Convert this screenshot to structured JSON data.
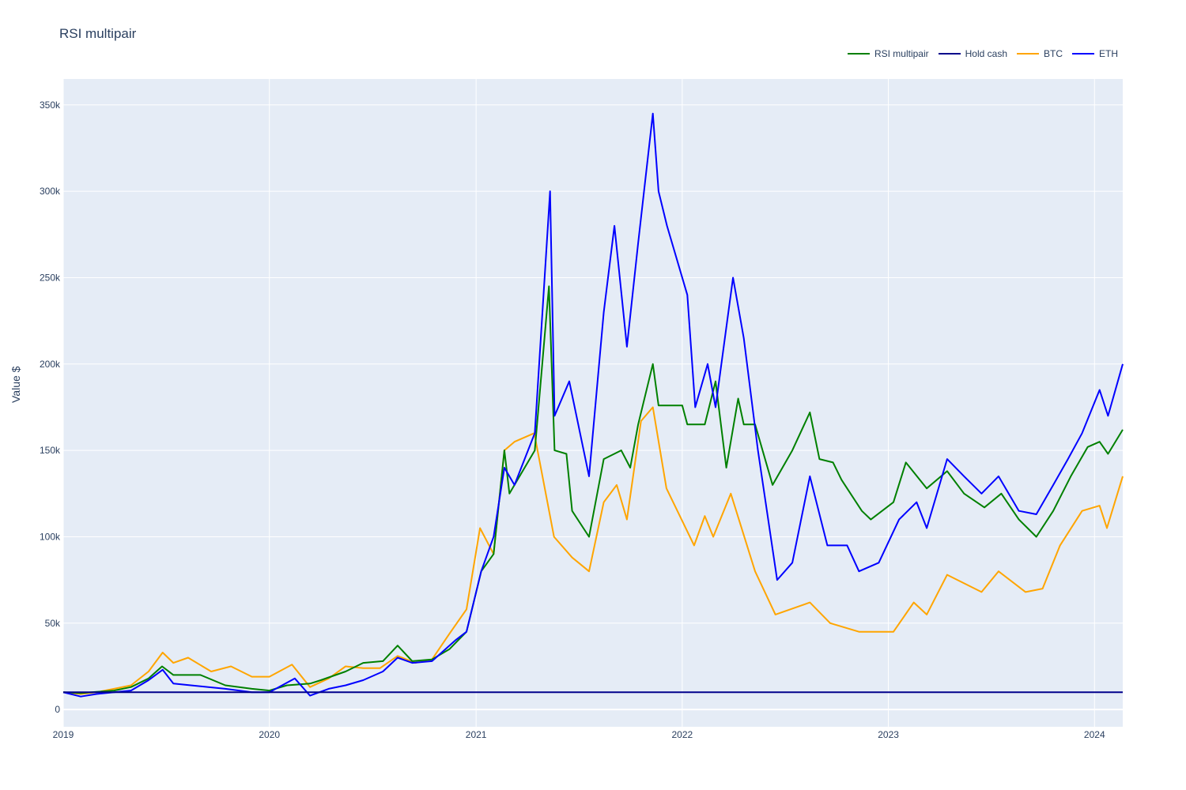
{
  "chart_data": {
    "type": "line",
    "title": "RSI multipair",
    "xlabel": "",
    "ylabel": "Value $",
    "xlim": [
      "2019-01-01",
      "2024-02-20"
    ],
    "ylim": [
      -10000,
      365000
    ],
    "grid": true,
    "legend_position": "top-right",
    "x_ticks": [
      "2019",
      "2020",
      "2021",
      "2022",
      "2023",
      "2024"
    ],
    "y_ticks": [
      {
        "value": 0,
        "label": "0"
      },
      {
        "value": 50000,
        "label": "50k"
      },
      {
        "value": 100000,
        "label": "100k"
      },
      {
        "value": 150000,
        "label": "150k"
      },
      {
        "value": 200000,
        "label": "200k"
      },
      {
        "value": 250000,
        "label": "250k"
      },
      {
        "value": 300000,
        "label": "300k"
      },
      {
        "value": 350000,
        "label": "350k"
      }
    ],
    "series": [
      {
        "name": "RSI multipair",
        "color": "#008000",
        "points": [
          [
            "2019-01-01",
            10000
          ],
          [
            "2019-02-01",
            9500
          ],
          [
            "2019-03-01",
            10200
          ],
          [
            "2019-04-01",
            11000
          ],
          [
            "2019-05-01",
            13000
          ],
          [
            "2019-06-01",
            18000
          ],
          [
            "2019-06-25",
            25000
          ],
          [
            "2019-07-15",
            20000
          ],
          [
            "2019-09-01",
            20000
          ],
          [
            "2019-10-15",
            14000
          ],
          [
            "2019-12-01",
            12000
          ],
          [
            "2020-01-01",
            11000
          ],
          [
            "2020-02-01",
            14000
          ],
          [
            "2020-03-13",
            15000
          ],
          [
            "2020-04-01",
            17000
          ],
          [
            "2020-05-15",
            22000
          ],
          [
            "2020-06-15",
            27000
          ],
          [
            "2020-07-20",
            28000
          ],
          [
            "2020-08-15",
            37000
          ],
          [
            "2020-09-10",
            28000
          ],
          [
            "2020-10-15",
            29000
          ],
          [
            "2020-11-15",
            35000
          ],
          [
            "2020-12-15",
            45000
          ],
          [
            "2021-01-10",
            80000
          ],
          [
            "2021-02-01",
            90000
          ],
          [
            "2021-02-20",
            150000
          ],
          [
            "2021-03-01",
            125000
          ],
          [
            "2021-04-15",
            150000
          ],
          [
            "2021-05-10",
            245000
          ],
          [
            "2021-05-20",
            150000
          ],
          [
            "2021-06-10",
            148000
          ],
          [
            "2021-06-20",
            115000
          ],
          [
            "2021-07-20",
            100000
          ],
          [
            "2021-08-15",
            145000
          ],
          [
            "2021-09-15",
            150000
          ],
          [
            "2021-10-01",
            140000
          ],
          [
            "2021-10-15",
            165000
          ],
          [
            "2021-11-10",
            200000
          ],
          [
            "2021-11-20",
            176000
          ],
          [
            "2022-01-01",
            176000
          ],
          [
            "2022-01-10",
            165000
          ],
          [
            "2022-02-10",
            165000
          ],
          [
            "2022-03-01",
            190000
          ],
          [
            "2022-03-20",
            140000
          ],
          [
            "2022-04-10",
            180000
          ],
          [
            "2022-04-20",
            165000
          ],
          [
            "2022-05-10",
            165000
          ],
          [
            "2022-06-10",
            130000
          ],
          [
            "2022-07-15",
            150000
          ],
          [
            "2022-08-15",
            172000
          ],
          [
            "2022-09-01",
            145000
          ],
          [
            "2022-09-25",
            143000
          ],
          [
            "2022-10-10",
            133000
          ],
          [
            "2022-11-15",
            115000
          ],
          [
            "2022-12-01",
            110000
          ],
          [
            "2023-01-10",
            120000
          ],
          [
            "2023-02-01",
            143000
          ],
          [
            "2023-03-10",
            128000
          ],
          [
            "2023-04-15",
            138000
          ],
          [
            "2023-05-15",
            125000
          ],
          [
            "2023-06-20",
            117000
          ],
          [
            "2023-07-20",
            125000
          ],
          [
            "2023-08-20",
            110000
          ],
          [
            "2023-09-20",
            100000
          ],
          [
            "2023-10-20",
            115000
          ],
          [
            "2023-11-20",
            135000
          ],
          [
            "2023-12-20",
            152000
          ],
          [
            "2024-01-10",
            155000
          ],
          [
            "2024-01-25",
            148000
          ],
          [
            "2024-02-20",
            162000
          ]
        ]
      },
      {
        "name": "Hold cash",
        "color": "#00008b",
        "points": [
          [
            "2019-01-01",
            10000
          ],
          [
            "2024-02-20",
            10000
          ]
        ]
      },
      {
        "name": "BTC",
        "color": "#ffa500",
        "points": [
          [
            "2019-01-01",
            10000
          ],
          [
            "2019-02-01",
            9000
          ],
          [
            "2019-03-01",
            10000
          ],
          [
            "2019-04-01",
            12000
          ],
          [
            "2019-05-01",
            14000
          ],
          [
            "2019-06-01",
            22000
          ],
          [
            "2019-06-26",
            33000
          ],
          [
            "2019-07-15",
            27000
          ],
          [
            "2019-08-10",
            30000
          ],
          [
            "2019-09-20",
            22000
          ],
          [
            "2019-10-25",
            25000
          ],
          [
            "2019-12-01",
            19000
          ],
          [
            "2020-01-01",
            19000
          ],
          [
            "2020-02-10",
            26000
          ],
          [
            "2020-03-13",
            13000
          ],
          [
            "2020-04-15",
            18000
          ],
          [
            "2020-05-15",
            25000
          ],
          [
            "2020-06-15",
            24000
          ],
          [
            "2020-07-15",
            24000
          ],
          [
            "2020-08-15",
            31000
          ],
          [
            "2020-09-15",
            27000
          ],
          [
            "2020-10-15",
            29000
          ],
          [
            "2020-11-15",
            44000
          ],
          [
            "2020-12-15",
            58000
          ],
          [
            "2021-01-08",
            105000
          ],
          [
            "2021-02-01",
            90000
          ],
          [
            "2021-02-20",
            150000
          ],
          [
            "2021-03-10",
            155000
          ],
          [
            "2021-04-14",
            160000
          ],
          [
            "2021-05-19",
            100000
          ],
          [
            "2021-06-20",
            88000
          ],
          [
            "2021-07-20",
            80000
          ],
          [
            "2021-08-15",
            120000
          ],
          [
            "2021-09-07",
            130000
          ],
          [
            "2021-09-25",
            110000
          ],
          [
            "2021-10-20",
            167000
          ],
          [
            "2021-11-10",
            175000
          ],
          [
            "2021-12-04",
            128000
          ],
          [
            "2022-01-22",
            95000
          ],
          [
            "2022-02-10",
            112000
          ],
          [
            "2022-02-25",
            100000
          ],
          [
            "2022-03-28",
            125000
          ],
          [
            "2022-05-10",
            80000
          ],
          [
            "2022-06-15",
            55000
          ],
          [
            "2022-08-15",
            62000
          ],
          [
            "2022-09-20",
            50000
          ],
          [
            "2022-11-10",
            45000
          ],
          [
            "2023-01-10",
            45000
          ],
          [
            "2023-02-15",
            62000
          ],
          [
            "2023-03-10",
            55000
          ],
          [
            "2023-04-15",
            78000
          ],
          [
            "2023-06-15",
            68000
          ],
          [
            "2023-07-15",
            80000
          ],
          [
            "2023-09-01",
            68000
          ],
          [
            "2023-10-01",
            70000
          ],
          [
            "2023-11-01",
            95000
          ],
          [
            "2023-12-10",
            115000
          ],
          [
            "2024-01-10",
            118000
          ],
          [
            "2024-01-23",
            105000
          ],
          [
            "2024-02-20",
            135000
          ]
        ]
      },
      {
        "name": "ETH",
        "color": "#0000ff",
        "points": [
          [
            "2019-01-01",
            10000
          ],
          [
            "2019-02-01",
            7500
          ],
          [
            "2019-03-01",
            9000
          ],
          [
            "2019-04-01",
            10000
          ],
          [
            "2019-05-01",
            11000
          ],
          [
            "2019-06-01",
            17000
          ],
          [
            "2019-06-26",
            23000
          ],
          [
            "2019-07-15",
            15000
          ],
          [
            "2019-08-15",
            14000
          ],
          [
            "2019-09-15",
            13000
          ],
          [
            "2019-10-15",
            12000
          ],
          [
            "2019-12-01",
            10000
          ],
          [
            "2020-01-01",
            10000
          ],
          [
            "2020-02-15",
            18000
          ],
          [
            "2020-03-13",
            8000
          ],
          [
            "2020-04-15",
            12000
          ],
          [
            "2020-05-15",
            14000
          ],
          [
            "2020-06-15",
            17000
          ],
          [
            "2020-07-20",
            22000
          ],
          [
            "2020-08-15",
            30000
          ],
          [
            "2020-09-10",
            27000
          ],
          [
            "2020-10-15",
            28000
          ],
          [
            "2020-11-25",
            40000
          ],
          [
            "2020-12-15",
            45000
          ],
          [
            "2021-01-10",
            80000
          ],
          [
            "2021-02-01",
            100000
          ],
          [
            "2021-02-20",
            140000
          ],
          [
            "2021-03-10",
            130000
          ],
          [
            "2021-04-15",
            160000
          ],
          [
            "2021-05-12",
            300000
          ],
          [
            "2021-05-20",
            170000
          ],
          [
            "2021-06-15",
            190000
          ],
          [
            "2021-07-20",
            135000
          ],
          [
            "2021-08-15",
            230000
          ],
          [
            "2021-09-03",
            280000
          ],
          [
            "2021-09-25",
            210000
          ],
          [
            "2021-10-15",
            270000
          ],
          [
            "2021-11-10",
            345000
          ],
          [
            "2021-11-20",
            300000
          ],
          [
            "2021-12-05",
            280000
          ],
          [
            "2022-01-10",
            240000
          ],
          [
            "2022-01-24",
            175000
          ],
          [
            "2022-02-15",
            200000
          ],
          [
            "2022-03-01",
            175000
          ],
          [
            "2022-04-01",
            250000
          ],
          [
            "2022-04-20",
            215000
          ],
          [
            "2022-05-15",
            150000
          ],
          [
            "2022-06-18",
            75000
          ],
          [
            "2022-07-15",
            85000
          ],
          [
            "2022-08-15",
            135000
          ],
          [
            "2022-09-15",
            95000
          ],
          [
            "2022-10-20",
            95000
          ],
          [
            "2022-11-10",
            80000
          ],
          [
            "2022-12-15",
            85000
          ],
          [
            "2023-01-20",
            110000
          ],
          [
            "2023-02-20",
            120000
          ],
          [
            "2023-03-10",
            105000
          ],
          [
            "2023-04-15",
            145000
          ],
          [
            "2023-05-15",
            135000
          ],
          [
            "2023-06-15",
            125000
          ],
          [
            "2023-07-15",
            135000
          ],
          [
            "2023-08-20",
            115000
          ],
          [
            "2023-09-20",
            113000
          ],
          [
            "2023-10-20",
            130000
          ],
          [
            "2023-11-15",
            145000
          ],
          [
            "2023-12-10",
            160000
          ],
          [
            "2024-01-10",
            185000
          ],
          [
            "2024-01-25",
            170000
          ],
          [
            "2024-02-20",
            200000
          ]
        ]
      }
    ]
  }
}
